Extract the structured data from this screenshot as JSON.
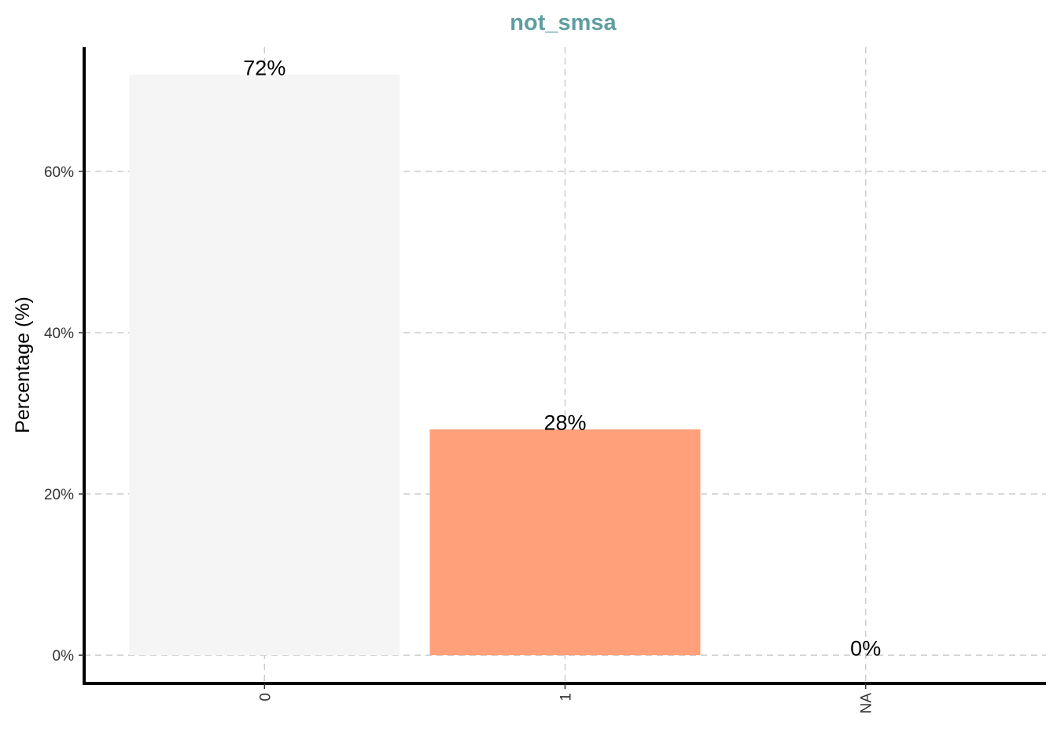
{
  "chart_data": {
    "type": "bar",
    "title": "not_smsa",
    "xlabel": "",
    "ylabel": "Percentage (%)",
    "categories": [
      "0",
      "1",
      "NA"
    ],
    "values": [
      72,
      28,
      0
    ],
    "data_labels": [
      "72%",
      "28%",
      "0%"
    ],
    "bar_colors": [
      "#f5f5f5",
      "#ffa07a",
      "#ffffff"
    ],
    "title_color": "#5f9ea0",
    "ylim": [
      -3.5,
      75.4
    ],
    "yticks": [
      0,
      20,
      40,
      60
    ],
    "ytick_labels": [
      "0%",
      "20%",
      "40%",
      "60%"
    ],
    "grid": true,
    "legend": "none"
  }
}
